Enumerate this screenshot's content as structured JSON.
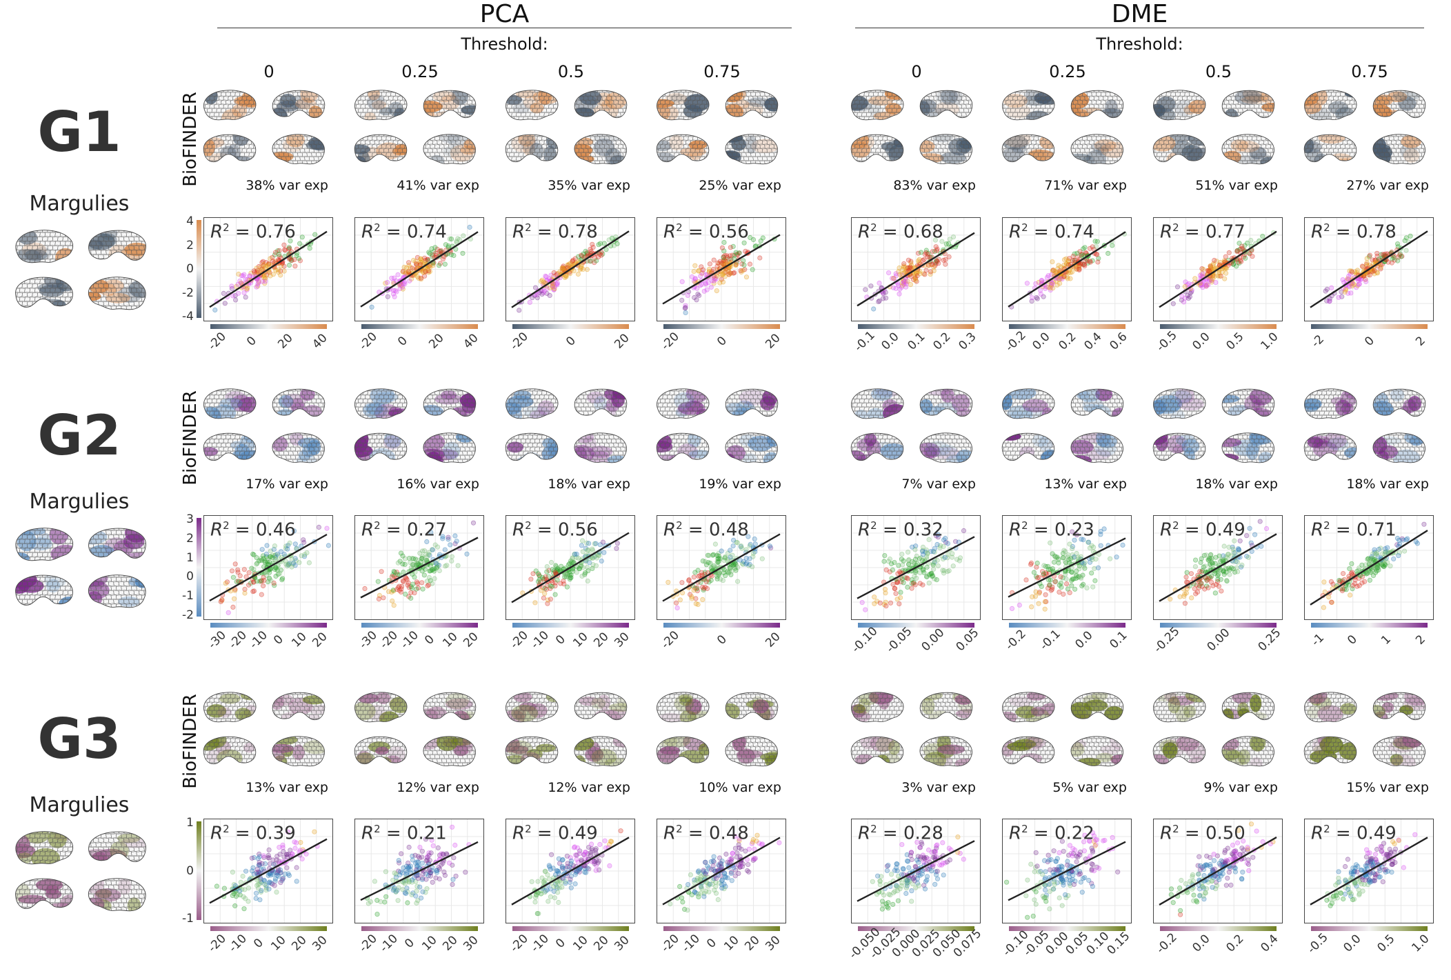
{
  "methods": [
    "PCA",
    "DME"
  ],
  "threshold_title": "Threshold:",
  "thresholds": [
    "0",
    "0.25",
    "0.5",
    "0.75"
  ],
  "row_label_side": "BioFINDER",
  "reference_label": "Margulies",
  "colors": {
    "G1": {
      "low": "#4a5b6e",
      "mid": "#f3f3f3",
      "high": "#d98b4e"
    },
    "G2": {
      "low": "#5a8cc0",
      "mid": "#f3f3f3",
      "high": "#7b2a8a"
    },
    "G3": {
      "low": "#9a5d8a",
      "mid": "#f3f3f3",
      "high": "#6f7f1f"
    },
    "scatter_palette": [
      "#2c7bb6",
      "#7b3294",
      "#d94ff0",
      "#e6a020",
      "#d7301f",
      "#2ca02c",
      "#7fbf7b"
    ]
  },
  "gradients": [
    {
      "name": "G1",
      "y_ticks": [
        "4",
        "2",
        "0",
        "-2",
        "-4"
      ],
      "panels": [
        {
          "var": "38% var exp",
          "r2": "0.76",
          "x_ticks": [
            "-20",
            "0",
            "20",
            "40"
          ]
        },
        {
          "var": "41% var exp",
          "r2": "0.74",
          "x_ticks": [
            "-20",
            "0",
            "20",
            "40"
          ]
        },
        {
          "var": "35% var exp",
          "r2": "0.78",
          "x_ticks": [
            "-20",
            "0",
            "20"
          ]
        },
        {
          "var": "25% var exp",
          "r2": "0.56",
          "x_ticks": [
            "-20",
            "0",
            "20"
          ]
        },
        {
          "var": "83% var exp",
          "r2": "0.68",
          "x_ticks": [
            "-0.1",
            "0.0",
            "0.1",
            "0.2",
            "0.3"
          ]
        },
        {
          "var": "71% var exp",
          "r2": "0.74",
          "x_ticks": [
            "-0.2",
            "0.0",
            "0.2",
            "0.4",
            "0.6"
          ]
        },
        {
          "var": "51% var exp",
          "r2": "0.77",
          "x_ticks": [
            "-0.5",
            "0.0",
            "0.5",
            "1.0"
          ]
        },
        {
          "var": "27% var exp",
          "r2": "0.78",
          "x_ticks": [
            "-2",
            "0",
            "2"
          ]
        }
      ]
    },
    {
      "name": "G2",
      "y_ticks": [
        "3",
        "2",
        "1",
        "0",
        "-1",
        "-2"
      ],
      "panels": [
        {
          "var": "17% var exp",
          "r2": "0.46",
          "x_ticks": [
            "-30",
            "-20",
            "-10",
            "0",
            "10",
            "20"
          ]
        },
        {
          "var": "16% var exp",
          "r2": "0.27",
          "x_ticks": [
            "-30",
            "-20",
            "-10",
            "0",
            "10",
            "20"
          ]
        },
        {
          "var": "18% var exp",
          "r2": "0.56",
          "x_ticks": [
            "-20",
            "-10",
            "0",
            "10",
            "20",
            "30"
          ]
        },
        {
          "var": "19% var exp",
          "r2": "0.48",
          "x_ticks": [
            "-20",
            "0",
            "20"
          ]
        },
        {
          "var": "7% var exp",
          "r2": "0.32",
          "x_ticks": [
            "-0.10",
            "-0.05",
            "0.00",
            "0.05"
          ]
        },
        {
          "var": "13% var exp",
          "r2": "0.23",
          "x_ticks": [
            "-0.2",
            "-0.1",
            "0.0",
            "0.1"
          ]
        },
        {
          "var": "18% var exp",
          "r2": "0.49",
          "x_ticks": [
            "-0.25",
            "0.00",
            "0.25"
          ]
        },
        {
          "var": "18% var exp",
          "r2": "0.71",
          "x_ticks": [
            "-1",
            "0",
            "1",
            "2"
          ]
        }
      ]
    },
    {
      "name": "G3",
      "y_ticks": [
        "1",
        "0",
        "-1"
      ],
      "panels": [
        {
          "var": "13% var exp",
          "r2": "0.39",
          "x_ticks": [
            "-20",
            "-10",
            "0",
            "10",
            "20",
            "30"
          ]
        },
        {
          "var": "12% var exp",
          "r2": "0.21",
          "x_ticks": [
            "-20",
            "-10",
            "0",
            "10",
            "20",
            "30"
          ]
        },
        {
          "var": "12% var exp",
          "r2": "0.49",
          "x_ticks": [
            "-20",
            "-10",
            "0",
            "10",
            "20",
            "30"
          ]
        },
        {
          "var": "10% var exp",
          "r2": "0.48",
          "x_ticks": [
            "-20",
            "-10",
            "0",
            "10",
            "20",
            "30"
          ]
        },
        {
          "var": "3% var exp",
          "r2": "0.28",
          "x_ticks": [
            "-0.050",
            "-0.025",
            "0.000",
            "0.025",
            "0.050",
            "0.075"
          ]
        },
        {
          "var": "5% var exp",
          "r2": "0.22",
          "x_ticks": [
            "-0.10",
            "-0.05",
            "0.00",
            "0.05",
            "0.10",
            "0.15"
          ]
        },
        {
          "var": "9% var exp",
          "r2": "0.50",
          "x_ticks": [
            "-0.2",
            "0.0",
            "0.2",
            "0.4"
          ]
        },
        {
          "var": "15% var exp",
          "r2": "0.49",
          "x_ticks": [
            "-0.5",
            "0.0",
            "0.5",
            "1.0"
          ]
        }
      ]
    }
  ],
  "chart_data": {
    "type": "scatter",
    "title": "",
    "xlabel": "",
    "ylabel": "",
    "grid": true,
    "panels_r2": {
      "G1": {
        "PCA": [
          0.76,
          0.74,
          0.78,
          0.56
        ],
        "DME": [
          0.68,
          0.74,
          0.77,
          0.78
        ]
      },
      "G2": {
        "PCA": [
          0.46,
          0.27,
          0.56,
          0.48
        ],
        "DME": [
          0.32,
          0.23,
          0.49,
          0.71
        ]
      },
      "G3": {
        "PCA": [
          0.39,
          0.21,
          0.49,
          0.48
        ],
        "DME": [
          0.28,
          0.22,
          0.5,
          0.49
        ]
      }
    },
    "variance_explained_pct": {
      "G1": {
        "PCA": [
          38,
          41,
          35,
          25
        ],
        "DME": [
          83,
          71,
          51,
          27
        ]
      },
      "G2": {
        "PCA": [
          17,
          16,
          18,
          19
        ],
        "DME": [
          7,
          13,
          18,
          18
        ]
      },
      "G3": {
        "PCA": [
          13,
          12,
          12,
          10
        ],
        "DME": [
          3,
          5,
          9,
          15
        ]
      }
    },
    "ylim": {
      "G1": [
        -4,
        4
      ],
      "G2": [
        -2,
        3
      ],
      "G3": [
        -1.5,
        1.5
      ]
    }
  }
}
